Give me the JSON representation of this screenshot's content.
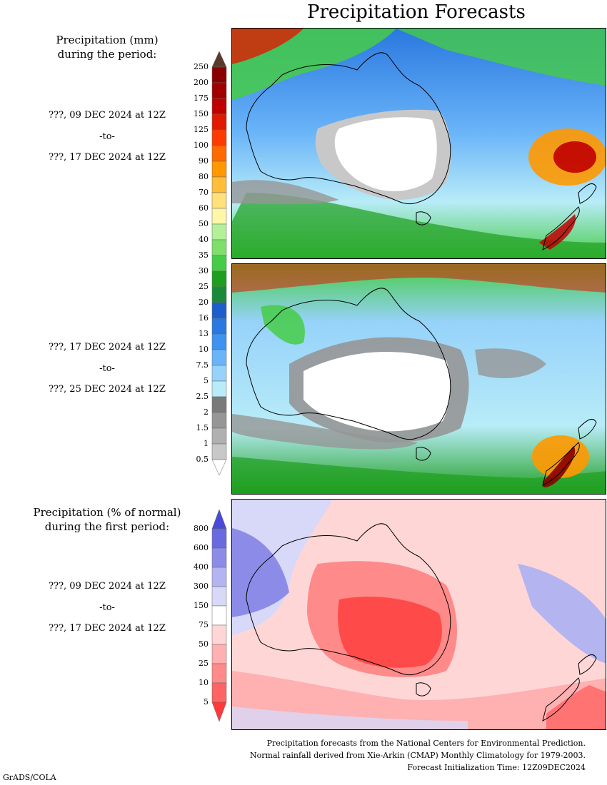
{
  "title": "Precipitation Forecasts",
  "precip_header": [
    "Precipitation (mm)",
    "during the period:"
  ],
  "period1": {
    "start": "???, 09 DEC 2024 at 12Z",
    "sep": "-to-",
    "end": "???, 17 DEC 2024 at 12Z"
  },
  "period2": {
    "start": "???, 17 DEC 2024 at 12Z",
    "sep": "-to-",
    "end": "???, 25 DEC 2024 at 12Z"
  },
  "pct_header": [
    "Precipitation (% of normal)",
    "during the first period:"
  ],
  "period3": {
    "start": "???, 09 DEC 2024 at 12Z",
    "sep": "-to-",
    "end": "???, 17 DEC 2024 at 12Z"
  },
  "precip_scale": {
    "labels": [
      "250",
      "200",
      "175",
      "150",
      "125",
      "100",
      "90",
      "80",
      "70",
      "60",
      "50",
      "40",
      "35",
      "30",
      "25",
      "20",
      "16",
      "13",
      "10",
      "7.5",
      "5",
      "2.5",
      "2",
      "1.5",
      "1",
      "0.5"
    ],
    "colors": [
      "#5a3a2a",
      "#8a0000",
      "#a00000",
      "#c00000",
      "#e01a00",
      "#ff3a00",
      "#ff6a00",
      "#ff9800",
      "#ffbe3a",
      "#ffe07a",
      "#fff6a8",
      "#b4f09a",
      "#7ee06a",
      "#46cc46",
      "#1e9e1e",
      "#1a8a3a",
      "#1e5ecc",
      "#2a78e0",
      "#3e92f0",
      "#6ab4f8",
      "#96d2fa",
      "#b8ecf8",
      "#7a7a7a",
      "#969696",
      "#b0b0b0",
      "#c8c8c8",
      "#ffffff"
    ]
  },
  "pct_scale": {
    "labels": [
      "800",
      "600",
      "400",
      "300",
      "150",
      "75",
      "50",
      "25",
      "10",
      "5"
    ],
    "colors": [
      "#4a4ad8",
      "#6a6ae0",
      "#8c8ce8",
      "#b4b4f0",
      "#d8d8f8",
      "#ffffff",
      "#ffd6d6",
      "#ffb0b0",
      "#ff8a8a",
      "#ff6464",
      "#ff3a3a"
    ]
  },
  "footer": [
    "Precipitation forecasts from the National Centers for Environmental Prediction.",
    "Normal rainfall derived from Xie-Arkin (CMAP) Monthly Climatology for 1979-2003.",
    "Forecast Initialization Time: 12Z09DEC2024"
  ],
  "credit": "GrADS/COLA"
}
